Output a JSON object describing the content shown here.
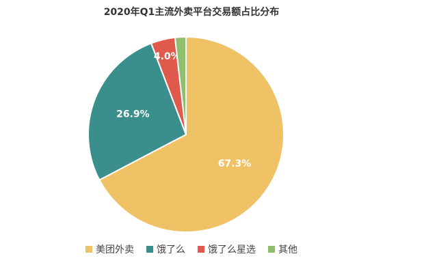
{
  "chart_data": {
    "type": "pie",
    "title": "2020年Q1主流外卖平台交易额占比分布",
    "categories": [
      "美团外卖",
      "饿了么",
      "饿了么星选",
      "其他"
    ],
    "values": [
      67.3,
      26.9,
      4.0,
      1.8
    ],
    "value_labels": [
      "67.3%",
      "26.9%",
      "4.0%",
      null
    ],
    "colors": [
      "#eec265",
      "#3a8f8d",
      "#df5a4c",
      "#8fbf6c"
    ],
    "legend": "bottom"
  }
}
